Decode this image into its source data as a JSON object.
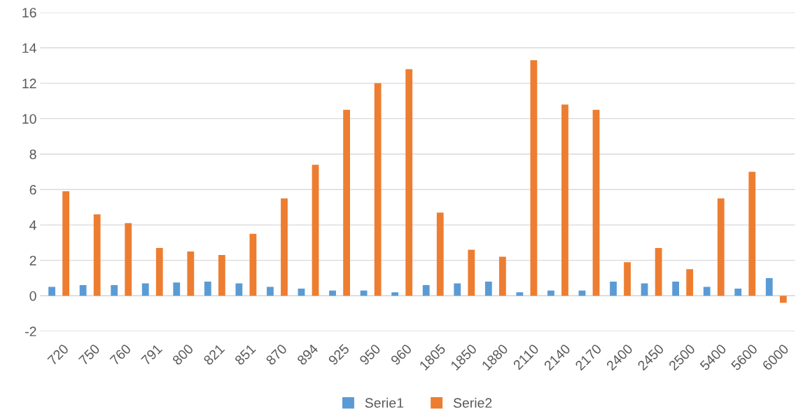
{
  "chart_data": {
    "type": "bar",
    "categories": [
      "720",
      "750",
      "760",
      "791",
      "800",
      "821",
      "851",
      "870",
      "894",
      "925",
      "950",
      "960",
      "1805",
      "1850",
      "1880",
      "2110",
      "2140",
      "2170",
      "2400",
      "2450",
      "2500",
      "5400",
      "5600",
      "6000"
    ],
    "series": [
      {
        "name": "Serie1",
        "color": "#5b9bd5",
        "values": [
          0.5,
          0.6,
          0.6,
          0.7,
          0.75,
          0.8,
          0.7,
          0.5,
          0.4,
          0.3,
          0.3,
          0.2,
          0.6,
          0.7,
          0.8,
          0.2,
          0.3,
          0.3,
          0.8,
          0.7,
          0.8,
          0.5,
          0.4,
          1.0
        ]
      },
      {
        "name": "Serie2",
        "color": "#ed7d31",
        "values": [
          5.9,
          4.6,
          4.1,
          2.7,
          2.5,
          2.3,
          3.5,
          5.5,
          7.4,
          10.5,
          12.0,
          12.8,
          4.7,
          2.6,
          2.2,
          13.3,
          10.8,
          10.5,
          1.9,
          2.7,
          1.5,
          5.5,
          7.0,
          -0.4
        ]
      }
    ],
    "ylim": [
      -2,
      16
    ],
    "yticks": [
      -2,
      0,
      2,
      4,
      6,
      8,
      10,
      12,
      14,
      16
    ],
    "grid": "y",
    "legend": "bottom"
  }
}
